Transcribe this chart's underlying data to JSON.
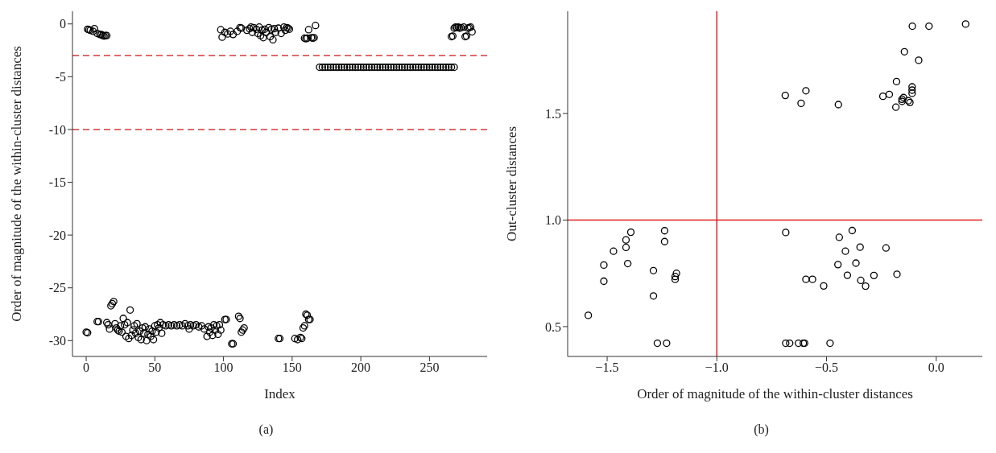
{
  "chart_data": [
    {
      "type": "scatter",
      "xlabel": "Index",
      "ylabel": "Order of magnitude of the within-cluster distances",
      "color": "#000000",
      "marker": "circle",
      "x": [
        0,
        1,
        8,
        9,
        15,
        16,
        17,
        18,
        19,
        20,
        21,
        22,
        23,
        24,
        25,
        26,
        27,
        28,
        29,
        30,
        31,
        32,
        33,
        34,
        35,
        36,
        37,
        38,
        39,
        40,
        41,
        42,
        43,
        44,
        45,
        46,
        47,
        48,
        49,
        50,
        51,
        52,
        53,
        54,
        55,
        56,
        58,
        60,
        62,
        64,
        66,
        68,
        70,
        72,
        74,
        75,
        76,
        78,
        80,
        82,
        84,
        86,
        88,
        89,
        90,
        91,
        92,
        93,
        94,
        95,
        96,
        97,
        98,
        101,
        102,
        106,
        107,
        111,
        112,
        113,
        114,
        115,
        140,
        141,
        152,
        154,
        156,
        157,
        158,
        159,
        160,
        161,
        162,
        163,
        1,
        2,
        3,
        5,
        6,
        8,
        10,
        11,
        12,
        13,
        14,
        15,
        98,
        99,
        101,
        103,
        105,
        107,
        110,
        112,
        113,
        117,
        119,
        120,
        121,
        122,
        124,
        125,
        126,
        127,
        128,
        129,
        130,
        131,
        133,
        134,
        135,
        136,
        137,
        138,
        140,
        142,
        144,
        145,
        146,
        147,
        148,
        159,
        160,
        161,
        162,
        164,
        165,
        166,
        167,
        170,
        172,
        174,
        176,
        178,
        180,
        182,
        184,
        186,
        188,
        190,
        192,
        194,
        196,
        198,
        200,
        202,
        204,
        206,
        208,
        210,
        212,
        214,
        216,
        218,
        220,
        222,
        224,
        226,
        228,
        230,
        232,
        234,
        236,
        238,
        240,
        242,
        244,
        246,
        248,
        250,
        252,
        254,
        256,
        258,
        260,
        262,
        264,
        266,
        268,
        266,
        267,
        268,
        269,
        270,
        271,
        272,
        273,
        275,
        276,
        277,
        278,
        279,
        280,
        281
      ],
      "values": [
        -29.2,
        -29.25,
        -28.2,
        -28.2,
        -28.3,
        -28.5,
        -28.9,
        -26.7,
        -26.5,
        -26.3,
        -28.4,
        -28.8,
        -29,
        -29.1,
        -28.6,
        -29.2,
        -27.9,
        -28.5,
        -29.6,
        -28.3,
        -29.8,
        -27.1,
        -29.5,
        -29,
        -28.6,
        -29.3,
        -28.4,
        -29.7,
        -29.1,
        -29.9,
        -28.8,
        -29.3,
        -28.7,
        -30,
        -29.4,
        -28.9,
        -29.6,
        -29.1,
        -29.9,
        -28.6,
        -29.2,
        -28.5,
        -28.8,
        -28.3,
        -29.3,
        -28.5,
        -28.6,
        -28.5,
        -28.6,
        -28.5,
        -28.6,
        -28.5,
        -28.6,
        -28.4,
        -28.6,
        -28.9,
        -28.5,
        -28.6,
        -28.5,
        -28.7,
        -28.6,
        -28.9,
        -29.6,
        -28.7,
        -29.2,
        -28.8,
        -29.5,
        -28.5,
        -29,
        -28.6,
        -29.4,
        -28.5,
        -29,
        -28,
        -28,
        -30.3,
        -30.3,
        -27.7,
        -27.9,
        -29.2,
        -29,
        -28.8,
        -29.8,
        -29.8,
        -29.8,
        -29.9,
        -29.7,
        -29.8,
        -28.8,
        -28.6,
        -27.5,
        -27.6,
        -28,
        -28,
        -0.5,
        -0.55,
        -0.6,
        -0.7,
        -0.45,
        -0.9,
        -1,
        -1,
        -1.1,
        -1.15,
        -1.1,
        -1.1,
        -0.55,
        -1.25,
        -0.8,
        -0.95,
        -0.7,
        -1,
        -0.7,
        -0.35,
        -0.4,
        -0.6,
        -0.45,
        -0.3,
        -0.8,
        -0.35,
        -0.5,
        -0.9,
        -0.3,
        -1.1,
        -0.6,
        -1.3,
        -0.5,
        -0.8,
        -0.35,
        -1.2,
        -0.5,
        -1.5,
        -0.45,
        -0.8,
        -0.4,
        -0.9,
        -0.3,
        -0.6,
        -0.35,
        -0.4,
        -0.5,
        -1.35,
        -1.4,
        -1.35,
        -0.55,
        -1.3,
        -1.35,
        -1.3,
        -0.15,
        -4.1,
        -4.1,
        -4.1,
        -4.1,
        -4.1,
        -4.1,
        -4.1,
        -4.1,
        -4.1,
        -4.1,
        -4.1,
        -4.1,
        -4.1,
        -4.1,
        -4.1,
        -4.1,
        -4.1,
        -4.1,
        -4.1,
        -4.1,
        -4.1,
        -4.1,
        -4.1,
        -4.1,
        -4.1,
        -4.1,
        -4.1,
        -4.1,
        -4.1,
        -4.1,
        -4.1,
        -4.1,
        -4.1,
        -4.1,
        -4.1,
        -4.1,
        -4.1,
        -4.1,
        -4.1,
        -4.1,
        -4.1,
        -4.1,
        -4.1,
        -4.1,
        -4.1,
        -4.1,
        -4.1,
        -4.1,
        -4.1,
        -4.1,
        -1.2,
        -1.15,
        -0.4,
        -0.3,
        -0.35,
        -0.3,
        -0.4,
        -0.35,
        -0.3,
        -1.2,
        -1.15,
        -0.4,
        -0.35,
        -0.3,
        -0.75
      ],
      "xlim": [
        -10,
        292
      ],
      "ylim": [
        -31.5,
        1.2
      ],
      "xticks": [
        0,
        50,
        100,
        150,
        200,
        250
      ],
      "yticks": [
        0,
        -5,
        -10,
        -15,
        -20,
        -25,
        -30
      ],
      "ref_lines": [
        {
          "axis": "y",
          "value": -3,
          "color": "#d9383a",
          "line_style": "dashed"
        },
        {
          "axis": "y",
          "value": -10,
          "color": "#d9383a",
          "line_style": "dashed"
        }
      ],
      "annotations": [
        "(a)"
      ]
    },
    {
      "type": "scatter",
      "xlabel": "Order of magnitude of the within-cluster distances",
      "ylabel": "Out-cluster distances",
      "color": "#000000",
      "marker": "circle",
      "x": [
        -0.109,
        -0.033,
        0.134,
        -0.145,
        -0.08,
        -0.181,
        -0.11,
        -0.11,
        -0.11,
        -0.688,
        -0.594,
        -0.616,
        -0.446,
        -0.243,
        -0.214,
        -0.156,
        -0.149,
        -0.156,
        -0.127,
        -0.12,
        -0.184,
        -1.392,
        -1.414,
        -1.414,
        -1.471,
        -1.515,
        -1.406,
        -1.515,
        -1.586,
        -1.238,
        -1.238,
        -1.289,
        -1.184,
        -1.19,
        -1.19,
        -1.289,
        -1.271,
        -1.229,
        -0.686,
        -0.383,
        -0.442,
        -0.414,
        -0.347,
        -0.229,
        -0.448,
        -0.366,
        -0.405,
        -0.284,
        -0.179,
        -0.594,
        -0.564,
        -0.344,
        -0.322,
        -0.513,
        -0.686,
        -0.668,
        -0.628,
        -0.606,
        -0.6,
        -0.484
      ],
      "values": [
        1.91,
        1.91,
        1.92,
        1.79,
        1.75,
        1.65,
        1.625,
        1.61,
        1.595,
        1.585,
        1.607,
        1.548,
        1.542,
        1.581,
        1.59,
        1.567,
        1.575,
        1.557,
        1.56,
        1.552,
        1.53,
        0.943,
        0.907,
        0.872,
        0.854,
        0.789,
        0.796,
        0.713,
        0.553,
        0.95,
        0.899,
        0.763,
        0.75,
        0.735,
        0.722,
        0.644,
        0.422,
        0.422,
        0.942,
        0.951,
        0.919,
        0.854,
        0.873,
        0.869,
        0.791,
        0.798,
        0.741,
        0.74,
        0.746,
        0.722,
        0.722,
        0.717,
        0.69,
        0.691,
        0.422,
        0.422,
        0.422,
        0.422,
        0.422,
        0.422
      ],
      "xlim": [
        -1.68,
        0.21
      ],
      "ylim": [
        0.36,
        1.98
      ],
      "xticks": [
        {
          "value": -1.5,
          "label": "−1.5"
        },
        {
          "value": -1,
          "label": "−1.0"
        },
        {
          "value": -0.5,
          "label": "−0.5"
        },
        {
          "value": 0,
          "label": "0.0"
        }
      ],
      "yticks": [
        {
          "value": 0.5,
          "label": "0.5"
        },
        {
          "value": 1,
          "label": "1.0"
        },
        {
          "value": 1.5,
          "label": "1.5"
        }
      ],
      "ref_lines": [
        {
          "axis": "x",
          "value": -1,
          "color": "#e02020",
          "line_style": "solid"
        },
        {
          "axis": "y",
          "value": 1,
          "color": "#e02020",
          "line_style": "solid"
        }
      ],
      "annotations": [
        "(b)"
      ]
    }
  ]
}
